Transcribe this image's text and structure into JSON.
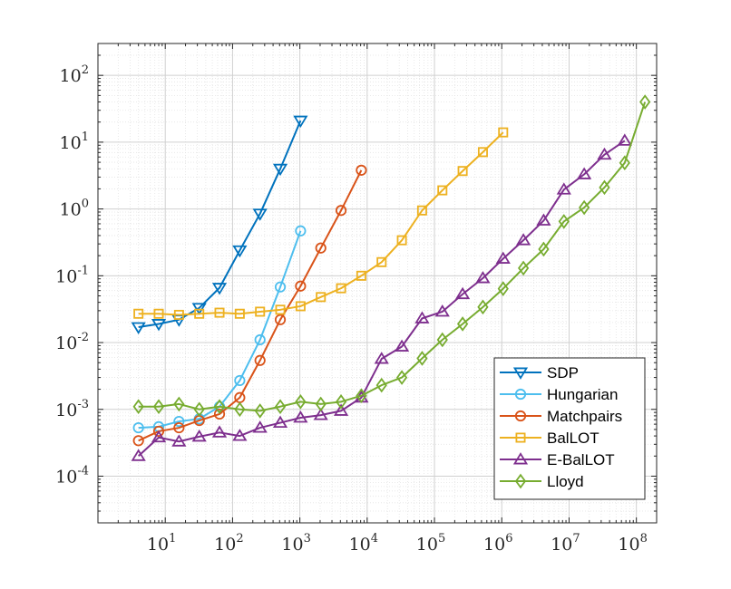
{
  "chart_data": {
    "type": "line",
    "x_scale": "log",
    "y_scale": "log",
    "xlim": [
      1,
      200000000
    ],
    "ylim": [
      2e-05,
      300
    ],
    "grid": true,
    "legend_position": "bottom-right",
    "x_ticks": [
      {
        "base": "10",
        "exp": "1",
        "value": 10
      },
      {
        "base": "10",
        "exp": "2",
        "value": 100
      },
      {
        "base": "10",
        "exp": "3",
        "value": 1000
      },
      {
        "base": "10",
        "exp": "4",
        "value": 10000
      },
      {
        "base": "10",
        "exp": "5",
        "value": 100000
      },
      {
        "base": "10",
        "exp": "6",
        "value": 1000000
      },
      {
        "base": "10",
        "exp": "7",
        "value": 10000000
      },
      {
        "base": "10",
        "exp": "8",
        "value": 100000000
      }
    ],
    "y_ticks": [
      {
        "base": "10",
        "exp": "-4",
        "value": 0.0001
      },
      {
        "base": "10",
        "exp": "-3",
        "value": 0.001
      },
      {
        "base": "10",
        "exp": "-2",
        "value": 0.01
      },
      {
        "base": "10",
        "exp": "-1",
        "value": 0.1
      },
      {
        "base": "10",
        "exp": "0",
        "value": 1
      },
      {
        "base": "10",
        "exp": "1",
        "value": 10
      },
      {
        "base": "10",
        "exp": "2",
        "value": 100
      }
    ],
    "series": [
      {
        "name": "SDP",
        "color": "#0072BD",
        "marker": "triangle-down",
        "x": [
          4,
          8,
          16,
          32,
          64,
          128,
          256,
          512,
          1024
        ],
        "y": [
          0.017,
          0.019,
          0.022,
          0.033,
          0.066,
          0.24,
          0.85,
          4.0,
          21
        ]
      },
      {
        "name": "Hungarian",
        "color": "#4DBEEE",
        "marker": "circle",
        "x": [
          4,
          8,
          16,
          32,
          64,
          128,
          256,
          512,
          1024
        ],
        "y": [
          0.00053,
          0.00055,
          0.00066,
          0.00072,
          0.0011,
          0.0027,
          0.011,
          0.068,
          0.47
        ]
      },
      {
        "name": "Matchpairs",
        "color": "#D95319",
        "marker": "circle",
        "x": [
          4,
          8,
          16,
          32,
          64,
          128,
          256,
          512,
          1024,
          2048,
          4096,
          8192
        ],
        "y": [
          0.00034,
          0.00047,
          0.00053,
          0.00068,
          0.00085,
          0.0015,
          0.0054,
          0.022,
          0.07,
          0.26,
          0.95,
          3.8
        ]
      },
      {
        "name": "BalLOT",
        "color": "#EDB120",
        "marker": "square",
        "x": [
          4,
          8,
          16,
          32,
          64,
          128,
          256,
          512,
          1024,
          2048,
          4096,
          8192,
          16384,
          32768,
          65536,
          131072,
          262144,
          524288,
          1048576
        ],
        "y": [
          0.027,
          0.027,
          0.026,
          0.027,
          0.028,
          0.027,
          0.029,
          0.031,
          0.035,
          0.048,
          0.065,
          0.1,
          0.16,
          0.34,
          0.95,
          1.9,
          3.7,
          7.1,
          14
        ]
      },
      {
        "name": "E-BalLOT",
        "color": "#7E2F8E",
        "marker": "triangle-up",
        "x": [
          4,
          8,
          16,
          32,
          64,
          128,
          256,
          512,
          1024,
          2048,
          4096,
          8192,
          16384,
          32768,
          65536,
          131072,
          262144,
          524288,
          1048576,
          2097152,
          4194304,
          8388608,
          16777216,
          33554432,
          67108864
        ],
        "y": [
          0.0002,
          0.00038,
          0.00033,
          0.00039,
          0.00045,
          0.0004,
          0.00053,
          0.00063,
          0.00075,
          0.00082,
          0.00095,
          0.0015,
          0.0057,
          0.0087,
          0.023,
          0.029,
          0.053,
          0.092,
          0.18,
          0.34,
          0.67,
          1.95,
          3.3,
          6.5,
          10.5
        ]
      },
      {
        "name": "Lloyd",
        "color": "#77AC30",
        "marker": "diamond",
        "x": [
          4,
          8,
          16,
          32,
          64,
          128,
          256,
          512,
          1024,
          2048,
          4096,
          8192,
          16384,
          32768,
          65536,
          131072,
          262144,
          524288,
          1048576,
          2097152,
          4194304,
          8388608,
          16777216,
          33554432,
          67108864,
          134217728
        ],
        "y": [
          0.0011,
          0.0011,
          0.0012,
          0.001,
          0.0011,
          0.001,
          0.00095,
          0.0011,
          0.0013,
          0.0012,
          0.0013,
          0.0016,
          0.0023,
          0.003,
          0.0058,
          0.011,
          0.019,
          0.034,
          0.064,
          0.13,
          0.25,
          0.65,
          1.05,
          2.1,
          4.9,
          40
        ]
      }
    ]
  }
}
